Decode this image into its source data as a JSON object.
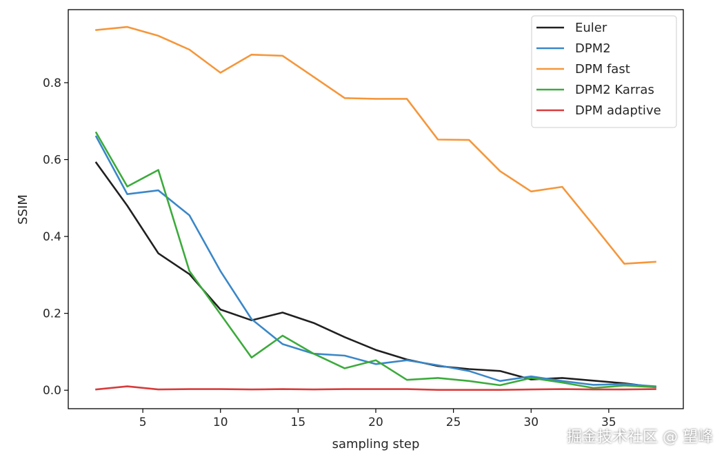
{
  "chart_data": {
    "type": "line",
    "title": "",
    "xlabel": "sampling step",
    "ylabel": "SSIM",
    "xlim": [
      0.2,
      39.8
    ],
    "ylim": [
      -0.048,
      0.99
    ],
    "x_ticks": [
      5,
      10,
      15,
      20,
      25,
      30,
      35
    ],
    "y_ticks": [
      0.0,
      0.2,
      0.4,
      0.6,
      0.8
    ],
    "y_tick_labels": [
      "0.0",
      "0.2",
      "0.4",
      "0.6",
      "0.8"
    ],
    "legend_position": "top-right",
    "grid": false,
    "x": [
      2,
      4,
      6,
      8,
      10,
      12,
      14,
      16,
      18,
      20,
      22,
      24,
      26,
      28,
      30,
      32,
      34,
      36,
      38
    ],
    "series": [
      {
        "name": "Euler",
        "color": "#202020",
        "values": [
          0.592,
          0.48,
          0.356,
          0.302,
          0.21,
          0.182,
          0.202,
          0.175,
          0.138,
          0.105,
          0.08,
          0.063,
          0.055,
          0.05,
          0.028,
          0.032,
          0.025,
          0.018,
          0.008
        ]
      },
      {
        "name": "DPM2",
        "color": "#3a87c8",
        "values": [
          0.66,
          0.51,
          0.52,
          0.455,
          0.31,
          0.185,
          0.12,
          0.095,
          0.09,
          0.068,
          0.078,
          0.065,
          0.05,
          0.024,
          0.036,
          0.024,
          0.014,
          0.016,
          0.01
        ]
      },
      {
        "name": "DPM fast",
        "color": "#f5963a",
        "values": [
          0.937,
          0.945,
          0.922,
          0.886,
          0.826,
          0.873,
          0.87,
          0.815,
          0.76,
          0.758,
          0.758,
          0.652,
          0.651,
          0.57,
          0.517,
          0.529,
          0.43,
          0.329,
          0.334
        ]
      },
      {
        "name": "DPM2 Karras",
        "color": "#3caa3c",
        "values": [
          0.67,
          0.53,
          0.573,
          0.31,
          0.198,
          0.085,
          0.142,
          0.095,
          0.057,
          0.078,
          0.027,
          0.032,
          0.024,
          0.013,
          0.032,
          0.02,
          0.006,
          0.012,
          0.008
        ]
      },
      {
        "name": "DPM adaptive",
        "color": "#d83b3b",
        "values": [
          0.002,
          0.01,
          0.002,
          0.003,
          0.003,
          0.002,
          0.003,
          0.002,
          0.003,
          0.003,
          0.003,
          0.001,
          0.001,
          0.001,
          0.002,
          0.003,
          0.002,
          0.002,
          0.003
        ]
      }
    ]
  },
  "watermark": "掘金技术社区 @ 望峰"
}
